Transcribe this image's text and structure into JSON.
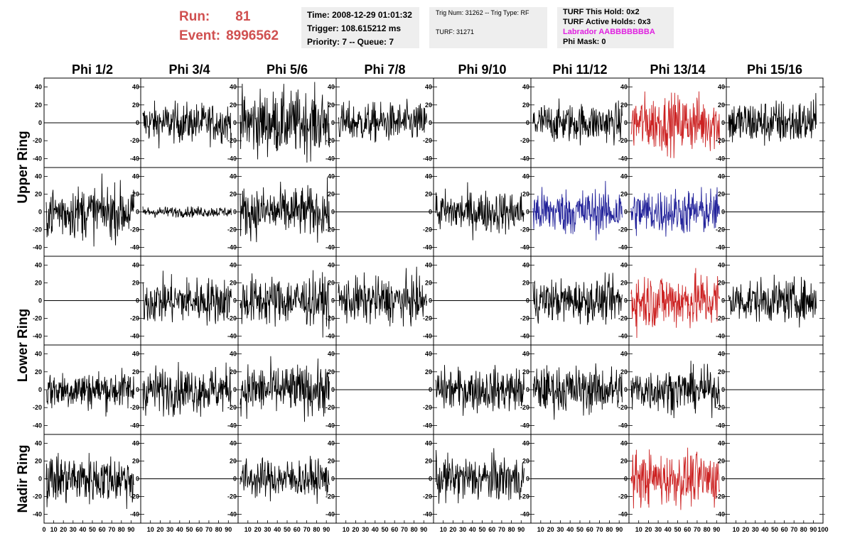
{
  "header": {
    "run_label": "Run:",
    "run_value": "81",
    "event_label": "Event:",
    "event_value": "8996562"
  },
  "time_box": {
    "time": "Time: 2008-12-29 01:01:32",
    "trigger": "Trigger: 108.615212 ms",
    "priority": "Priority: 7 -- Queue: 7"
  },
  "trig_box": {
    "trig": "Trig Num: 31262 -- Trig Type: RF",
    "turf": "TURF: 31271"
  },
  "turf_box": {
    "this_hold": "TURF This Hold: 0x2",
    "active_holds": "TURF Active Holds: 0x3",
    "labrador": "Labrador AABBBBBBBA",
    "phi_mask": "Phi Mask: 0"
  },
  "colors": {
    "header_red": "#d05050",
    "labrador": "#e020e0",
    "trace_black": "#000000",
    "trace_red": "#cc2222",
    "trace_blue": "#22229a",
    "box_bg": "#eeeeee"
  },
  "chart_data": {
    "type": "line",
    "columns": [
      "Phi 1/2",
      "Phi 3/4",
      "Phi 5/6",
      "Phi 7/8",
      "Phi 9/10",
      "Phi 11/12",
      "Phi 13/14",
      "Phi 15/16"
    ],
    "rows": [
      "Upper Ring",
      "",
      "Lower Ring",
      "",
      "Nadir Ring"
    ],
    "xlim": [
      0,
      100
    ],
    "ylim": [
      -50,
      50
    ],
    "y_ticks": [
      -40,
      -20,
      0,
      20,
      40
    ],
    "x_ticks": [
      0,
      10,
      20,
      30,
      40,
      50,
      60,
      70,
      80,
      90,
      100
    ],
    "panels": [
      [
        {
          "active": false
        },
        {
          "active": true,
          "amp": 11,
          "color": "black"
        },
        {
          "active": true,
          "amp": 18,
          "color": "black"
        },
        {
          "active": true,
          "amp": 11,
          "color": "black"
        },
        {
          "active": false
        },
        {
          "active": true,
          "amp": 11,
          "color": "black"
        },
        {
          "active": true,
          "amp": 16,
          "color": "red"
        },
        {
          "active": true,
          "amp": 13,
          "color": "black"
        }
      ],
      [
        {
          "active": true,
          "amp": 15,
          "color": "black"
        },
        {
          "active": true,
          "amp": 3,
          "color": "black"
        },
        {
          "active": true,
          "amp": 14,
          "color": "black"
        },
        {
          "active": false
        },
        {
          "active": true,
          "amp": 12,
          "color": "black"
        },
        {
          "active": true,
          "amp": 13,
          "color": "blue"
        },
        {
          "active": true,
          "amp": 13,
          "color": "blue"
        },
        {
          "active": false
        }
      ],
      [
        {
          "active": false
        },
        {
          "active": true,
          "amp": 13,
          "color": "black"
        },
        {
          "active": true,
          "amp": 14,
          "color": "black"
        },
        {
          "active": true,
          "amp": 13,
          "color": "black"
        },
        {
          "active": false
        },
        {
          "active": true,
          "amp": 12,
          "color": "black"
        },
        {
          "active": true,
          "amp": 16,
          "color": "red"
        },
        {
          "active": true,
          "amp": 12,
          "color": "black"
        }
      ],
      [
        {
          "active": true,
          "amp": 11,
          "color": "black"
        },
        {
          "active": true,
          "amp": 13,
          "color": "black"
        },
        {
          "active": true,
          "amp": 14,
          "color": "black"
        },
        {
          "active": false
        },
        {
          "active": true,
          "amp": 12,
          "color": "black"
        },
        {
          "active": true,
          "amp": 13,
          "color": "black"
        },
        {
          "active": true,
          "amp": 12,
          "color": "black"
        },
        {
          "active": false
        }
      ],
      [
        {
          "active": true,
          "amp": 14,
          "color": "black"
        },
        {
          "active": false
        },
        {
          "active": true,
          "amp": 11,
          "color": "black"
        },
        {
          "active": false
        },
        {
          "active": true,
          "amp": 13,
          "color": "black"
        },
        {
          "active": false
        },
        {
          "active": true,
          "amp": 15,
          "color": "red"
        },
        {
          "active": false
        }
      ]
    ]
  }
}
